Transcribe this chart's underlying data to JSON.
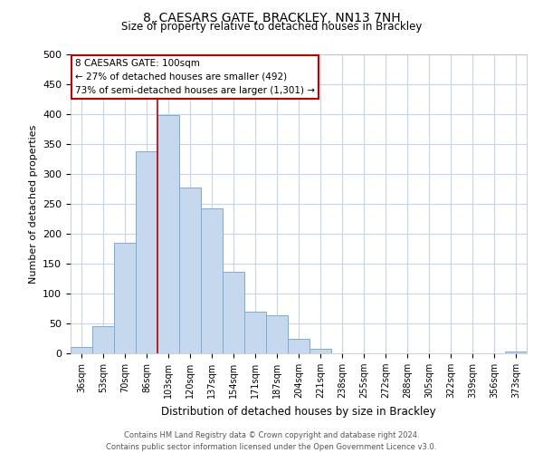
{
  "title": "8, CAESARS GATE, BRACKLEY, NN13 7NH",
  "subtitle": "Size of property relative to detached houses in Brackley",
  "xlabel": "Distribution of detached houses by size in Brackley",
  "ylabel": "Number of detached properties",
  "footer_line1": "Contains HM Land Registry data © Crown copyright and database right 2024.",
  "footer_line2": "Contains public sector information licensed under the Open Government Licence v3.0.",
  "bar_labels": [
    "36sqm",
    "53sqm",
    "70sqm",
    "86sqm",
    "103sqm",
    "120sqm",
    "137sqm",
    "154sqm",
    "171sqm",
    "187sqm",
    "204sqm",
    "221sqm",
    "238sqm",
    "255sqm",
    "272sqm",
    "288sqm",
    "305sqm",
    "322sqm",
    "339sqm",
    "356sqm",
    "373sqm"
  ],
  "bar_values": [
    10,
    46,
    185,
    338,
    398,
    277,
    242,
    137,
    70,
    63,
    25,
    8,
    0,
    0,
    0,
    0,
    0,
    0,
    0,
    0,
    3
  ],
  "bar_color": "#c5d8ee",
  "bar_edge_color": "#7aadd4",
  "ylim": [
    0,
    500
  ],
  "yticks": [
    0,
    50,
    100,
    150,
    200,
    250,
    300,
    350,
    400,
    450,
    500
  ],
  "annotation_box_text_line1": "8 CAESARS GATE: 100sqm",
  "annotation_box_text_line2": "← 27% of detached houses are smaller (492)",
  "annotation_box_text_line3": "73% of semi-detached houses are larger (1,301) →",
  "vline_x_index": 4,
  "vline_color": "#c00000",
  "grid_color": "#c8d4e8",
  "background_color": "#ffffff"
}
